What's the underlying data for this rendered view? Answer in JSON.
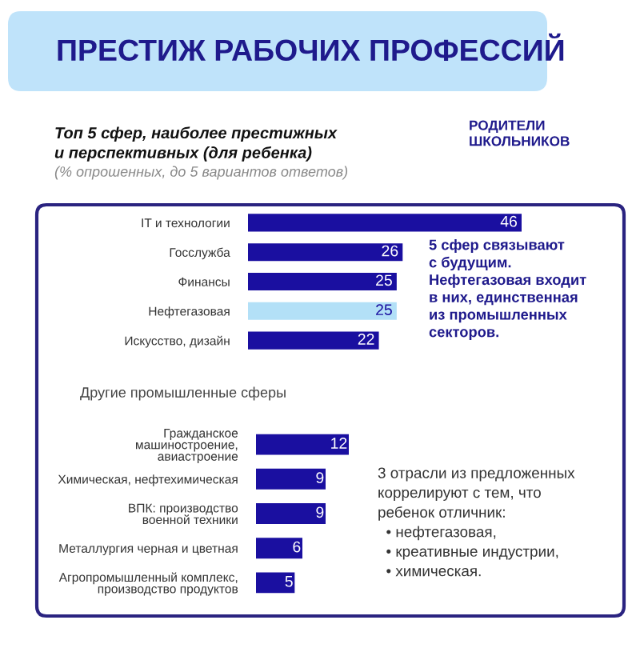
{
  "chart_data": [
    {
      "type": "bar",
      "orientation": "horizontal",
      "title": "ПРЕСТИЖ РАБОЧИХ ПРОФЕССИЙ",
      "subtitle": "Топ 5 сфер, наиболее престижных\nи перспективных (для ребенка)",
      "categories": [
        "IT и технологии",
        "Госслужба",
        "Финансы",
        "Нефтегазовая",
        "Искусство, дизайн"
      ],
      "values": [
        46,
        26,
        25,
        25,
        22
      ],
      "colors": [
        "#1a0fa0",
        "#1a0fa0",
        "#1a0fa0",
        "#b3e0f7",
        "#1a0fa0"
      ],
      "data_labels": true,
      "grid": false,
      "legend": false,
      "annotations": [
        "(% опрошенных, до 5 вариантов ответов)",
        "РОДИТЕЛИ\nШКОЛЬНИКОВ",
        "5 сфер связывают\nс будущим.\nНефтегазовая входит\nв них, единственная\nиз промышленных\nсекторов."
      ]
    },
    {
      "type": "bar",
      "orientation": "horizontal",
      "title": "Другие промышленные сферы",
      "categories": [
        "Гражданское\nмашиностроение,\nавиастроение",
        "Химическая, нефтехимическая",
        "ВПК: производство\nвоенной техники",
        "Металлургия черная и цветная",
        "Агропромышленный комплекс,\nпроизводство продуктов"
      ],
      "values": [
        12,
        9,
        9,
        6,
        5
      ],
      "colors": [
        "#1a0fa0",
        "#1a0fa0",
        "#1a0fa0",
        "#1a0fa0",
        "#1a0fa0"
      ],
      "data_labels": true,
      "grid": false,
      "legend": false,
      "annotations": [
        "3 отрасли из предложенных\nкоррелируют с тем, что\nребенок отличник:\n  • нефтегазовая,\n  • креативные индустрии,\n  • химическая."
      ]
    }
  ]
}
